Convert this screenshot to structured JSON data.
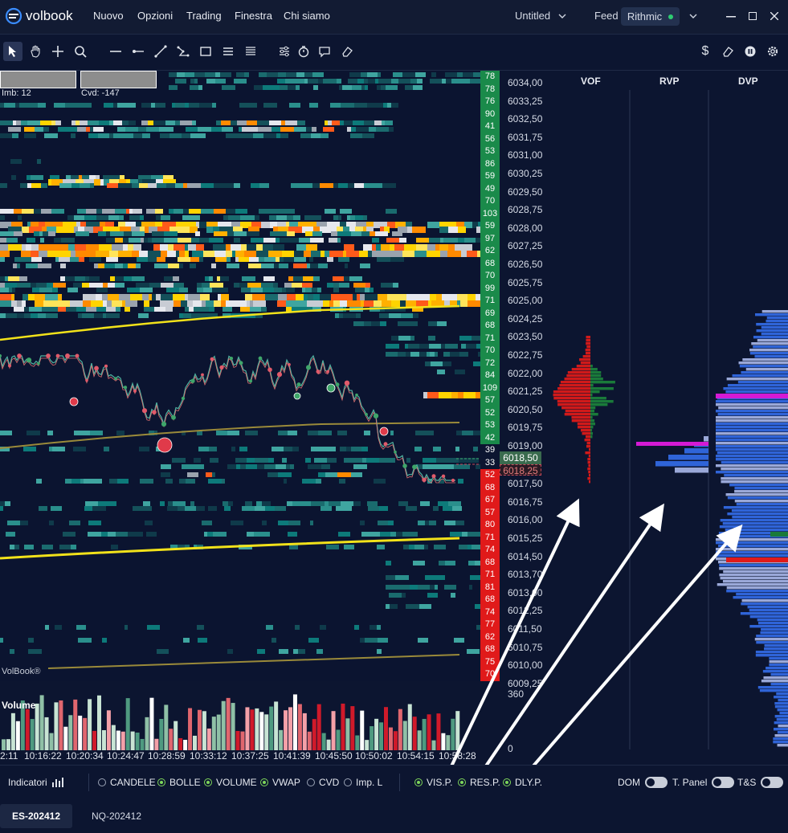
{
  "app": {
    "name": "volbook"
  },
  "menu": [
    "Nuovo",
    "Opzioni",
    "Trading",
    "Finestra",
    "Chi siamo"
  ],
  "window": {
    "title": "Untitled",
    "feed_label": "Feed",
    "feed_value": "Rithmic",
    "feed_status_color": "#2ecc71"
  },
  "toolbar": {
    "left_tools": [
      "pointer-icon",
      "hand-icon",
      "crosshair-icon",
      "zoom-icon",
      "hline-icon",
      "ray-icon",
      "trendline-icon",
      "path-icon",
      "rectangle-icon",
      "lines-icon",
      "list-icon",
      "settings-sliders-icon",
      "stopwatch-icon",
      "chat-icon",
      "eraser-icon"
    ],
    "right_tools": [
      "dollar-icon",
      "eraser-icon",
      "pause-icon",
      "gear-icon"
    ]
  },
  "chart": {
    "imb_label": "Imb: 12",
    "cvd_label": "Cvd: -147",
    "watermark": "VolBook®",
    "volume_label": "Volume",
    "current_price": "6018,50",
    "price_below": "6018,25",
    "price_axis": [
      "6034,00",
      "6033,25",
      "6032,50",
      "6031,75",
      "6031,00",
      "6030,25",
      "6029,50",
      "6028,75",
      "6028,00",
      "6027,25",
      "6026,50",
      "6025,75",
      "6025,00",
      "6024,25",
      "6023,50",
      "6022,75",
      "6022,00",
      "6021,25",
      "6020,50",
      "6019,75",
      "6019,00",
      "6018,50",
      "6017,50",
      "6016,75",
      "6016,00",
      "6015,25",
      "6014,50",
      "6013,70",
      "6013,00",
      "6012,25",
      "6011,50",
      "6010,75",
      "6010,00",
      "6009,25"
    ],
    "volume_axis": [
      "360",
      "0"
    ],
    "time_axis": [
      "2:11",
      "10:16:22",
      "10:20:34",
      "10:24:47",
      "10:28:59",
      "10:33:12",
      "10:37:25",
      "10:41:39",
      "10:45:50",
      "10:50:02",
      "10:54:15",
      "10:58:28"
    ],
    "ladder_values": [
      "78",
      "78",
      "76",
      "90",
      "41",
      "56",
      "53",
      "86",
      "59",
      "49",
      "70",
      "103",
      "59",
      "97",
      "62",
      "68",
      "70",
      "99",
      "71",
      "69",
      "68",
      "71",
      "70",
      "72",
      "84",
      "109",
      "57",
      "52",
      "53",
      "42",
      "39",
      "33",
      "52",
      "68",
      "67",
      "57",
      "80",
      "71",
      "74",
      "68",
      "71",
      "81",
      "68",
      "74",
      "77",
      "62",
      "68",
      "75",
      "70"
    ],
    "colors": {
      "bid": "#1a8a4a",
      "ask": "#e01a1a",
      "vwap": "#f2e21a",
      "band": "#9a8a3a"
    }
  },
  "profiles": {
    "headers": [
      "VOF",
      "RVP",
      "DVP"
    ]
  },
  "bottom": {
    "indicators_label": "Indicatori",
    "options": [
      {
        "label": "CANDELE",
        "on": false
      },
      {
        "label": "BOLLE",
        "on": true
      },
      {
        "label": "VOLUME",
        "on": true
      },
      {
        "label": "VWAP",
        "on": true
      },
      {
        "label": "CVD",
        "on": false
      },
      {
        "label": "Imp. L",
        "on": false
      },
      {
        "label": "VIS.P.",
        "on": true
      },
      {
        "label": "RES.P.",
        "on": true
      },
      {
        "label": "DLY.P.",
        "on": true
      }
    ],
    "toggles": [
      "DOM",
      "T. Panel",
      "T&S"
    ]
  },
  "tabs": [
    "ES-202412",
    "NQ-202412"
  ]
}
